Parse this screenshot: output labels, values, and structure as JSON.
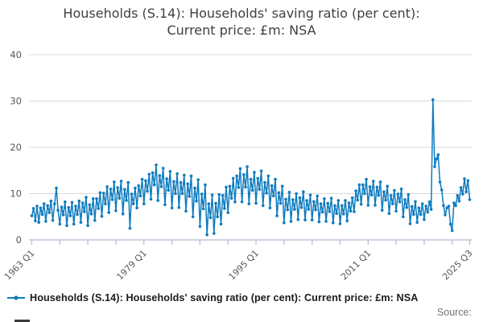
{
  "title": {
    "line1": "Households (S.14): Households' saving ratio (per cent):",
    "line2": "Current price: £m: NSA"
  },
  "legend": {
    "label": "Households (S.14): Households' saving ratio (per cent): Current price: £m: NSA"
  },
  "source_label": "Source:",
  "colors": {
    "line": "#0e7bbf",
    "grid": "#d9d9d9",
    "axis": "#b3bad4",
    "tick_label": "#595959",
    "title_text": "#3f3f3f",
    "legend_text": "#1a1a1a",
    "source_text": "#757575"
  },
  "chart_data": {
    "type": "line",
    "title": "Households (S.14): Households' saving ratio (per cent): Current price: £m: NSA",
    "xlabel": "",
    "ylabel": "",
    "ylim": [
      0,
      40
    ],
    "y_ticks": [
      0,
      10,
      20,
      30,
      40
    ],
    "grid": "horizontal",
    "legend_position": "bottom",
    "x_unit": "quarter",
    "x_start": "1963 Q1",
    "x_end": "2025 Q3",
    "x_minor_tick_every_quarters": 16,
    "x_labeled_ticks": [
      {
        "quarter_index": 0,
        "label": "1963 Q1"
      },
      {
        "quarter_index": 64,
        "label": "1979 Q1"
      },
      {
        "quarter_index": 128,
        "label": "1995 Q1"
      },
      {
        "quarter_index": 192,
        "label": "2011 Q1"
      },
      {
        "quarter_index": 250,
        "label": "2025 Q3"
      }
    ],
    "series": [
      {
        "name": "Households (S.14): Households' saving ratio (per cent): Current price: £m: NSA",
        "start": "1963 Q1",
        "frequency": "quarterly",
        "values": [
          5.2,
          6.8,
          4.1,
          7.3,
          3.8,
          6.9,
          5.5,
          7.8,
          4.0,
          7.4,
          5.9,
          8.4,
          4.2,
          7.8,
          11.2,
          6.4,
          3.4,
          7.1,
          5.4,
          8.2,
          3.1,
          7.0,
          5.2,
          8.1,
          3.4,
          7.3,
          5.5,
          8.4,
          3.8,
          8.0,
          6.1,
          9.2,
          3.1,
          7.6,
          5.6,
          8.9,
          4.2,
          8.9,
          6.8,
          10.2,
          5.1,
          10.1,
          7.8,
          11.5,
          5.9,
          11.0,
          8.7,
          12.5,
          6.3,
          11.3,
          9.0,
          12.7,
          5.6,
          10.9,
          8.5,
          12.4,
          2.5,
          9.9,
          7.8,
          11.2,
          6.9,
          11.7,
          9.5,
          13.1,
          7.8,
          12.8,
          10.5,
          14.2,
          8.8,
          14.5,
          11.9,
          16.2,
          8.5,
          13.9,
          11.5,
          15.5,
          7.6,
          13.2,
          10.7,
          14.8,
          6.9,
          12.6,
          10.0,
          14.3,
          7.0,
          12.4,
          10.0,
          14.0,
          6.2,
          12.1,
          9.4,
          13.8,
          5.0,
          11.2,
          8.4,
          13.0,
          2.9,
          9.9,
          6.7,
          11.9,
          1.1,
          7.8,
          4.8,
          9.7,
          1.4,
          7.9,
          5.0,
          9.8,
          3.4,
          9.6,
          6.8,
          11.4,
          5.9,
          11.6,
          9.0,
          13.3,
          8.2,
          13.8,
          11.3,
          15.4,
          8.2,
          14.1,
          11.4,
          15.8,
          7.8,
          13.1,
          10.7,
          14.6,
          7.9,
          13.3,
          10.9,
          14.9,
          7.4,
          12.4,
          10.1,
          13.8,
          6.9,
          11.7,
          9.5,
          13.1,
          5.2,
          10.2,
          7.9,
          11.6,
          3.7,
          8.8,
          6.5,
          10.3,
          4.0,
          8.7,
          6.6,
          10.0,
          4.4,
          9.1,
          7.0,
          10.4,
          4.3,
          8.5,
          6.6,
          9.7,
          4.3,
          8.3,
          6.5,
          9.5,
          3.9,
          7.8,
          6.0,
          8.9,
          4.0,
          7.9,
          6.1,
          9.0,
          3.7,
          7.4,
          5.7,
          8.5,
          3.5,
          7.4,
          5.6,
          8.5,
          4.1,
          8.0,
          6.2,
          9.1,
          6.1,
          10.6,
          8.6,
          11.9,
          7.7,
          11.9,
          10.0,
          13.1,
          7.5,
          11.5,
          9.7,
          12.7,
          7.5,
          11.4,
          9.6,
          12.5,
          6.4,
          10.4,
          8.6,
          11.6,
          5.7,
          9.6,
          7.8,
          10.7,
          6.2,
          9.9,
          8.2,
          11.0,
          5.0,
          8.7,
          7.0,
          9.8,
          3.5,
          7.2,
          5.5,
          8.3,
          3.8,
          6.9,
          5.5,
          7.8,
          4.4,
          7.3,
          6.0,
          8.2,
          6.6,
          30.3,
          15.8,
          17.5,
          18.4,
          12.5,
          10.8,
          7.4,
          5.4,
          6.9,
          7.3,
          3.4,
          2.0,
          8.0,
          7.4,
          9.6,
          8.4,
          11.3,
          9.9,
          13.2,
          10.4,
          12.8,
          8.7
        ]
      }
    ]
  }
}
